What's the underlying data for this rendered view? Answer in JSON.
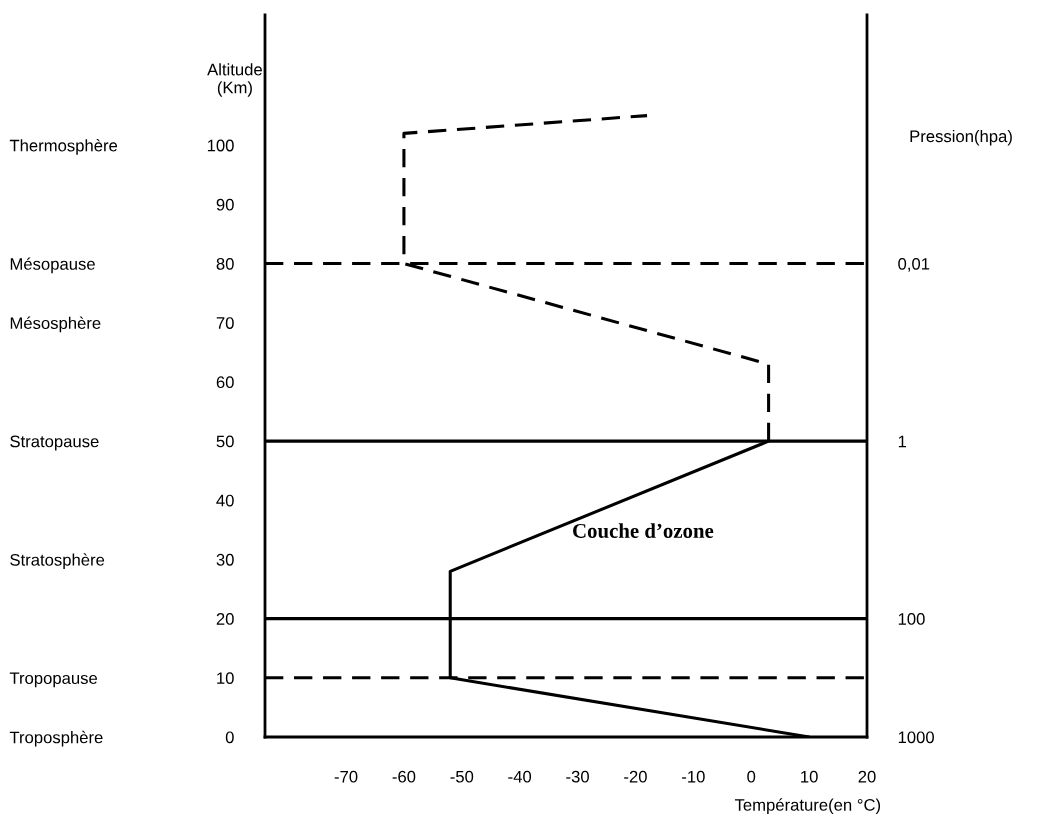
{
  "chart_data": {
    "type": "line",
    "xlabel": "Température(en °C)",
    "ylabel": "Altitude\n(Km)",
    "y2label": "Pression(hpa)",
    "xlim": [
      -84,
      20
    ],
    "xticks": [
      -70,
      -60,
      -50,
      -40,
      -30,
      -20,
      -10,
      0,
      10,
      20
    ],
    "ylim": [
      0,
      122
    ],
    "yticks": [
      0,
      10,
      20,
      30,
      40,
      50,
      60,
      70,
      80,
      90,
      100
    ],
    "y_categories": [
      "Thermosphère",
      null,
      "Mésopause",
      "Mésosphère",
      null,
      "Stratopause",
      null,
      "Stratosphère",
      null,
      "Tropopause",
      "Troposphère"
    ],
    "y2_categories": [
      null,
      null,
      "0,01",
      null,
      null,
      "1",
      null,
      null,
      "100",
      null,
      "1000"
    ],
    "series": [
      {
        "color": "#000000",
        "line_style": "solid",
        "x": [
          10,
          -52,
          -52,
          3
        ],
        "values": [
          0,
          10,
          28,
          50
        ]
      },
      {
        "color": "#000000",
        "line_style": "dashed",
        "x": [
          3,
          3,
          -60,
          -60,
          -18
        ],
        "values": [
          50,
          63,
          80,
          102,
          105
        ]
      }
    ],
    "ref_lines": [
      {
        "axis": "y",
        "value": 80,
        "color": "#000000",
        "line_style": "dashed"
      },
      {
        "axis": "y",
        "value": 50,
        "color": "#000000",
        "line_style": "solid"
      },
      {
        "axis": "y",
        "value": 20,
        "color": "#000000",
        "line_style": "solid"
      },
      {
        "axis": "y",
        "value": 10,
        "color": "#000000",
        "line_style": "dashed"
      }
    ],
    "annotations": [
      "Couche d’ozone"
    ],
    "grid": false,
    "legend": false,
    "marker": "none"
  }
}
